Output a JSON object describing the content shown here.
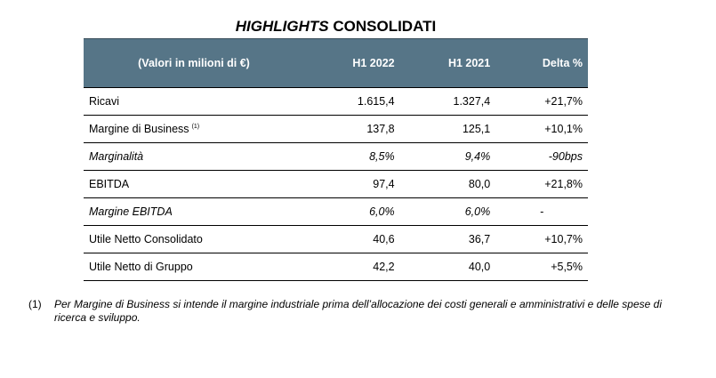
{
  "title": {
    "italic_part": "HIGHLIGHTS",
    "normal_part": "CONSOLIDATI"
  },
  "table": {
    "headers": [
      "(Valori in milioni di €)",
      "H1 2022",
      "H1 2021",
      "Delta %"
    ],
    "rows": [
      {
        "label": "Ricavi",
        "note": "",
        "h1_2022": "1.615,4",
        "h1_2021": "1.327,4",
        "delta": "+21,7%"
      },
      {
        "label": "Margine di Business",
        "note": "(1)",
        "h1_2022": "137,8",
        "h1_2021": "125,1",
        "delta": "+10,1%"
      },
      {
        "label": "Marginalità",
        "note": "",
        "h1_2022": "8,5%",
        "h1_2021": "9,4%",
        "delta": "-90bps"
      },
      {
        "label": "EBITDA",
        "note": "",
        "h1_2022": "97,4",
        "h1_2021": "80,0",
        "delta": "+21,8%"
      },
      {
        "label": "Margine EBITDA",
        "note": "",
        "h1_2022": "6,0%",
        "h1_2021": "6,0%",
        "delta": "-"
      },
      {
        "label": "Utile Netto Consolidato",
        "note": "",
        "h1_2022": "40,6",
        "h1_2021": "36,7",
        "delta": "+10,7%"
      },
      {
        "label": "Utile Netto di Gruppo",
        "note": "",
        "h1_2022": "42,2",
        "h1_2021": "40,0",
        "delta": "+5,5%"
      }
    ]
  },
  "footnote": {
    "marker": "(1)",
    "text": "Per Margine di Business si intende il margine industriale prima dell’allocazione dei costi generali e amministrativi e delle spese di ricerca e sviluppo."
  },
  "colors": {
    "header_bg": "#567587",
    "header_text": "#ffffff"
  }
}
